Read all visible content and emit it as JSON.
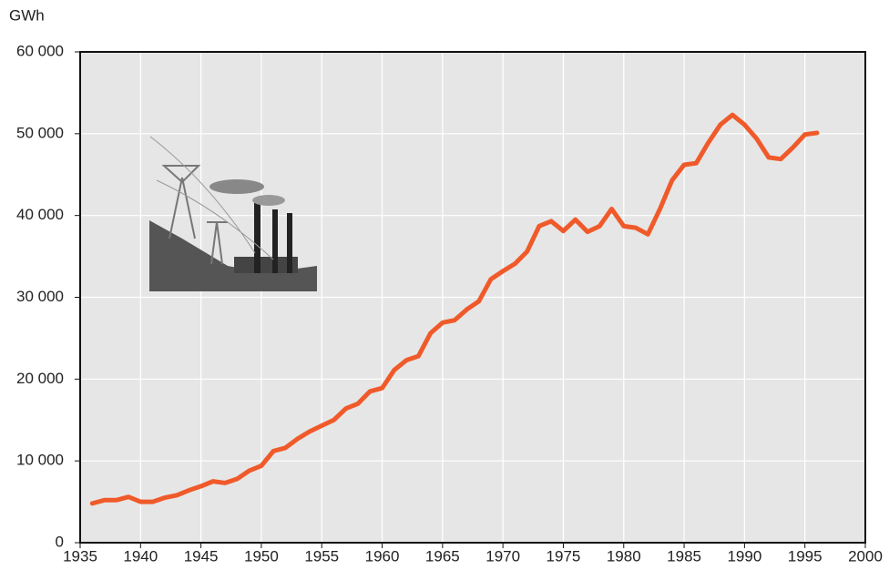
{
  "chart_data": {
    "type": "line",
    "y_label": "GWh",
    "x": [
      1936,
      1937,
      1938,
      1939,
      1940,
      1941,
      1942,
      1943,
      1944,
      1945,
      1946,
      1947,
      1948,
      1949,
      1950,
      1951,
      1952,
      1953,
      1954,
      1955,
      1956,
      1957,
      1958,
      1959,
      1960,
      1961,
      1962,
      1963,
      1964,
      1965,
      1966,
      1967,
      1968,
      1969,
      1970,
      1971,
      1972,
      1973,
      1974,
      1975,
      1976,
      1977,
      1978,
      1979,
      1980,
      1981,
      1982,
      1983,
      1984,
      1985,
      1986,
      1987,
      1988,
      1989,
      1990,
      1991,
      1992,
      1993,
      1994,
      1995,
      1996
    ],
    "values": [
      4800,
      5200,
      5200,
      5600,
      5000,
      5000,
      5500,
      5800,
      6400,
      6900,
      7500,
      7300,
      7800,
      8800,
      9400,
      11200,
      11600,
      12700,
      13600,
      14300,
      15000,
      16400,
      17000,
      18500,
      18900,
      21100,
      22300,
      22800,
      25600,
      26900,
      27200,
      28500,
      29500,
      32200,
      33200,
      34100,
      35600,
      38700,
      39300,
      38100,
      39500,
      38000,
      38700,
      40800,
      38700,
      38500,
      37700,
      40800,
      44300,
      46200,
      46400,
      48900,
      51100,
      52300,
      51100,
      49400,
      47100,
      46900,
      48300,
      49900,
      50100
    ],
    "color": "#f05a2a",
    "xlim": [
      1935,
      2000
    ],
    "xticks": [
      1935,
      1940,
      1945,
      1950,
      1955,
      1960,
      1965,
      1970,
      1975,
      1980,
      1985,
      1990,
      1995,
      2000
    ],
    "ylim": [
      0,
      60000
    ],
    "yticks": [
      0,
      {
        "value": 10000,
        "label": "10 000"
      },
      {
        "value": 20000,
        "label": "20 000"
      },
      {
        "value": 30000,
        "label": "30 000"
      },
      {
        "value": 40000,
        "label": "40 000"
      },
      {
        "value": 50000,
        "label": "50 000"
      },
      {
        "value": 60000,
        "label": "60 000"
      }
    ],
    "grid": true
  }
}
